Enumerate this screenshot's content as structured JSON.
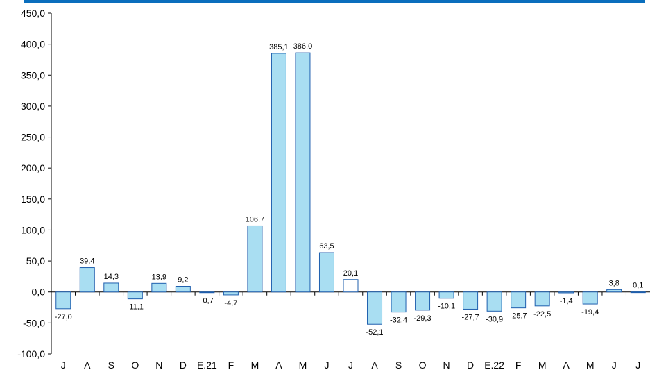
{
  "colors": {
    "accent_bar": "#0a6ebd",
    "bar_fill": "#a9def2",
    "bar_stroke": "#1f5fae",
    "bar_highlight_fill": "#ffffff",
    "axis": "#000000"
  },
  "chart_data": {
    "type": "bar",
    "title": "",
    "xlabel": "",
    "ylabel": "",
    "ylim": [
      -100,
      450
    ],
    "y_ticks": [
      "450,0",
      "400,0",
      "350,0",
      "300,0",
      "250,0",
      "200,0",
      "150,0",
      "100,0",
      "50,0",
      "0,0",
      "-50,0",
      "-100,0"
    ],
    "y_tick_values": [
      450,
      400,
      350,
      300,
      250,
      200,
      150,
      100,
      50,
      0,
      -50,
      -100
    ],
    "grid": false,
    "categories": [
      "J",
      "A",
      "S",
      "O",
      "N",
      "D",
      "E.21",
      "F",
      "M",
      "A",
      "M",
      "J",
      "J",
      "A",
      "S",
      "O",
      "N",
      "D",
      "E.22",
      "F",
      "M",
      "A",
      "M",
      "J",
      "J"
    ],
    "values": [
      -27.0,
      39.4,
      14.3,
      -11.1,
      13.9,
      9.2,
      -0.7,
      -4.7,
      106.7,
      385.1,
      386.0,
      63.5,
      20.1,
      -52.1,
      -32.4,
      -29.3,
      -10.1,
      -27.7,
      -30.9,
      -25.7,
      -22.5,
      -1.4,
      -19.4,
      3.8,
      0.1
    ],
    "value_labels": [
      "-27,0",
      "39,4",
      "14,3",
      "-11,1",
      "13,9",
      "9,2",
      "-0,7",
      "-4,7",
      "106,7",
      "385,1",
      "386,0",
      "63,5",
      "20,1",
      "-52,1",
      "-32,4",
      "-29,3",
      "-10,1",
      "-27,7",
      "-30,9",
      "-25,7",
      "-22,5",
      "-1,4",
      "-19,4",
      "3,8",
      "0,1"
    ],
    "highlight_index": 12
  }
}
